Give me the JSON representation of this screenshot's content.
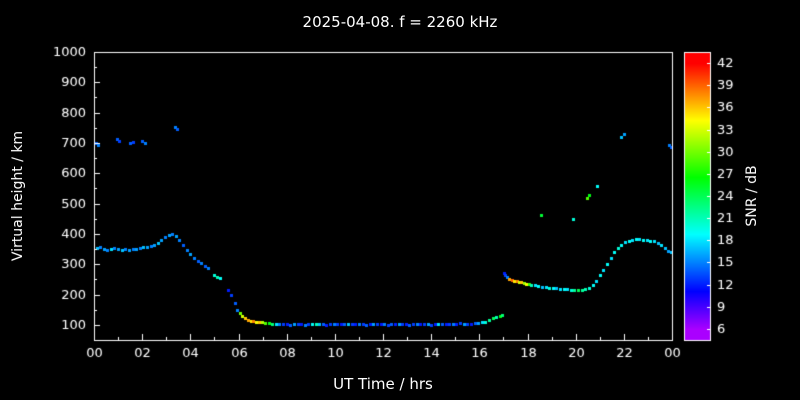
{
  "chart_data": {
    "type": "scatter",
    "title": "2025-04-08. f = 2260 kHz",
    "xlabel": "UT Time / hrs",
    "ylabel": "Virtual height / km",
    "xlim": [
      0,
      24
    ],
    "ylim": [
      50,
      1000
    ],
    "x_ticks": [
      0,
      2,
      4,
      6,
      8,
      10,
      12,
      14,
      16,
      18,
      20,
      22,
      24
    ],
    "x_tick_labels": [
      "00",
      "02",
      "04",
      "06",
      "08",
      "10",
      "12",
      "14",
      "16",
      "18",
      "20",
      "22",
      "00"
    ],
    "y_ticks": [
      100,
      200,
      300,
      400,
      500,
      600,
      700,
      800,
      900,
      1000
    ],
    "background_color": "#000000",
    "foreground_color": "#ffffff",
    "grid": false,
    "colorbar": {
      "label": "SNR / dB",
      "min": 6,
      "max": 42,
      "ticks": [
        6,
        9,
        12,
        15,
        18,
        21,
        24,
        27,
        30,
        33,
        36,
        39,
        42
      ],
      "min_hue": 280,
      "max_hue": 0
    },
    "points_format": [
      "ut_hours",
      "virtual_height_km",
      "snr_db"
    ],
    "points": [
      [
        0.08,
        700,
        14
      ],
      [
        0.18,
        692,
        15
      ],
      [
        0.95,
        712,
        14
      ],
      [
        1.05,
        706,
        13
      ],
      [
        1.5,
        700,
        14
      ],
      [
        1.6,
        703,
        13
      ],
      [
        2.0,
        706,
        14
      ],
      [
        2.1,
        700,
        15
      ],
      [
        3.35,
        753,
        15
      ],
      [
        3.45,
        747,
        14
      ],
      [
        0.12,
        352,
        17
      ],
      [
        0.25,
        356,
        15
      ],
      [
        0.4,
        350,
        16
      ],
      [
        0.55,
        348,
        15
      ],
      [
        0.7,
        350,
        18
      ],
      [
        0.85,
        352,
        15
      ],
      [
        1.0,
        350,
        16
      ],
      [
        1.15,
        348,
        17
      ],
      [
        1.3,
        350,
        15
      ],
      [
        1.45,
        347,
        16
      ],
      [
        1.6,
        349,
        15
      ],
      [
        1.75,
        351,
        16
      ],
      [
        1.9,
        353,
        15
      ],
      [
        2.05,
        356,
        17
      ],
      [
        2.2,
        358,
        16
      ],
      [
        2.35,
        360,
        15
      ],
      [
        2.5,
        364,
        16
      ],
      [
        2.65,
        371,
        17
      ],
      [
        2.8,
        380,
        16
      ],
      [
        2.95,
        390,
        15
      ],
      [
        3.1,
        396,
        16
      ],
      [
        3.25,
        400,
        15
      ],
      [
        3.4,
        394,
        16
      ],
      [
        3.55,
        380,
        15
      ],
      [
        3.7,
        362,
        14
      ],
      [
        3.85,
        348,
        15
      ],
      [
        4.0,
        334,
        16
      ],
      [
        4.15,
        322,
        15
      ],
      [
        4.3,
        312,
        14
      ],
      [
        4.45,
        303,
        15
      ],
      [
        4.6,
        294,
        14
      ],
      [
        4.75,
        286,
        15
      ],
      [
        5.0,
        263,
        20
      ],
      [
        5.12,
        259,
        21
      ],
      [
        5.25,
        256,
        19
      ],
      [
        5.55,
        216,
        12
      ],
      [
        5.7,
        200,
        13
      ],
      [
        5.85,
        172,
        14
      ],
      [
        5.95,
        150,
        15
      ],
      [
        6.05,
        138,
        30
      ],
      [
        6.15,
        128,
        33
      ],
      [
        6.28,
        121,
        36
      ],
      [
        6.4,
        117,
        37
      ],
      [
        6.5,
        114,
        35
      ],
      [
        6.62,
        112,
        38
      ],
      [
        6.74,
        110,
        34
      ],
      [
        6.86,
        109,
        36
      ],
      [
        6.98,
        108,
        32
      ],
      [
        7.1,
        107,
        29
      ],
      [
        7.25,
        106,
        26
      ],
      [
        7.4,
        104,
        23
      ],
      [
        7.55,
        103,
        18
      ],
      [
        7.7,
        102,
        15
      ],
      [
        7.85,
        103,
        13
      ],
      [
        8.0,
        102,
        12
      ],
      [
        8.15,
        101,
        14
      ],
      [
        8.3,
        102,
        16
      ],
      [
        8.45,
        103,
        13
      ],
      [
        8.6,
        102,
        12
      ],
      [
        8.75,
        101,
        15
      ],
      [
        8.9,
        102,
        13
      ],
      [
        9.05,
        103,
        19
      ],
      [
        9.2,
        104,
        21
      ],
      [
        9.35,
        103,
        17
      ],
      [
        9.5,
        102,
        14
      ],
      [
        9.65,
        101,
        12
      ],
      [
        9.8,
        102,
        13
      ],
      [
        9.95,
        103,
        15
      ],
      [
        10.1,
        104,
        13
      ],
      [
        10.25,
        103,
        12
      ],
      [
        10.4,
        102,
        14
      ],
      [
        10.55,
        102,
        17
      ],
      [
        10.7,
        103,
        13
      ],
      [
        10.85,
        104,
        12
      ],
      [
        11.0,
        103,
        15
      ],
      [
        11.15,
        102,
        13
      ],
      [
        11.3,
        101,
        14
      ],
      [
        11.45,
        102,
        12
      ],
      [
        11.6,
        103,
        16
      ],
      [
        11.75,
        104,
        13
      ],
      [
        11.9,
        103,
        12
      ],
      [
        12.05,
        102,
        15
      ],
      [
        12.2,
        101,
        13
      ],
      [
        12.35,
        102,
        14
      ],
      [
        12.5,
        103,
        12
      ],
      [
        12.65,
        104,
        16
      ],
      [
        12.8,
        103,
        13
      ],
      [
        12.95,
        102,
        12
      ],
      [
        13.1,
        101,
        14
      ],
      [
        13.25,
        102,
        13
      ],
      [
        13.4,
        103,
        15
      ],
      [
        13.55,
        104,
        12
      ],
      [
        13.7,
        103,
        13
      ],
      [
        13.85,
        102,
        16
      ],
      [
        14.0,
        101,
        13
      ],
      [
        14.15,
        102,
        12
      ],
      [
        14.3,
        103,
        18
      ],
      [
        14.45,
        104,
        14
      ],
      [
        14.6,
        103,
        12
      ],
      [
        14.75,
        102,
        13
      ],
      [
        14.9,
        103,
        15
      ],
      [
        15.05,
        104,
        12
      ],
      [
        15.2,
        105,
        13
      ],
      [
        15.35,
        104,
        16
      ],
      [
        15.5,
        103,
        13
      ],
      [
        15.65,
        104,
        12
      ],
      [
        15.8,
        105,
        14
      ],
      [
        15.95,
        106,
        16
      ],
      [
        16.1,
        108,
        18
      ],
      [
        16.25,
        111,
        20
      ],
      [
        16.4,
        116,
        22
      ],
      [
        16.55,
        121,
        24
      ],
      [
        16.7,
        126,
        21
      ],
      [
        16.85,
        130,
        26
      ],
      [
        16.95,
        133,
        23
      ],
      [
        17.02,
        272,
        12
      ],
      [
        17.08,
        265,
        13
      ],
      [
        17.15,
        258,
        15
      ],
      [
        17.25,
        252,
        37
      ],
      [
        17.35,
        249,
        39
      ],
      [
        17.45,
        246,
        35
      ],
      [
        17.55,
        244,
        38
      ],
      [
        17.65,
        242,
        33
      ],
      [
        17.75,
        240,
        36
      ],
      [
        17.85,
        238,
        31
      ],
      [
        17.95,
        236,
        34
      ],
      [
        18.05,
        234,
        28
      ],
      [
        18.15,
        232,
        21
      ],
      [
        18.3,
        230,
        18
      ],
      [
        18.45,
        228,
        19
      ],
      [
        18.6,
        226,
        17
      ],
      [
        18.75,
        224,
        18
      ],
      [
        18.9,
        222,
        20
      ],
      [
        19.05,
        221,
        19
      ],
      [
        19.2,
        220,
        17
      ],
      [
        19.35,
        219,
        18
      ],
      [
        19.5,
        218,
        19
      ],
      [
        19.65,
        217,
        18
      ],
      [
        19.8,
        216,
        20
      ],
      [
        19.95,
        215,
        22
      ],
      [
        20.1,
        215,
        24
      ],
      [
        20.25,
        216,
        22
      ],
      [
        20.4,
        218,
        21
      ],
      [
        20.55,
        223,
        20
      ],
      [
        20.7,
        233,
        19
      ],
      [
        20.85,
        246,
        18
      ],
      [
        21.0,
        263,
        19
      ],
      [
        21.15,
        281,
        18
      ],
      [
        21.3,
        301,
        19
      ],
      [
        21.45,
        321,
        18
      ],
      [
        21.6,
        339,
        19
      ],
      [
        21.75,
        353,
        20
      ],
      [
        21.9,
        364,
        19
      ],
      [
        22.05,
        372,
        18
      ],
      [
        22.2,
        377,
        19
      ],
      [
        22.35,
        380,
        18
      ],
      [
        22.5,
        382,
        19
      ],
      [
        22.65,
        382,
        18
      ],
      [
        22.8,
        381,
        19
      ],
      [
        22.95,
        380,
        18
      ],
      [
        23.1,
        378,
        19
      ],
      [
        23.25,
        375,
        18
      ],
      [
        23.4,
        370,
        17
      ],
      [
        23.55,
        362,
        18
      ],
      [
        23.7,
        352,
        17
      ],
      [
        23.85,
        345,
        16
      ],
      [
        23.95,
        340,
        17
      ],
      [
        18.55,
        462,
        25
      ],
      [
        19.9,
        448,
        20
      ],
      [
        20.45,
        520,
        29
      ],
      [
        20.55,
        528,
        26
      ],
      [
        20.9,
        558,
        19
      ],
      [
        21.9,
        718,
        17
      ],
      [
        22.0,
        728,
        16
      ],
      [
        23.88,
        692,
        15
      ],
      [
        23.96,
        685,
        14
      ]
    ]
  }
}
